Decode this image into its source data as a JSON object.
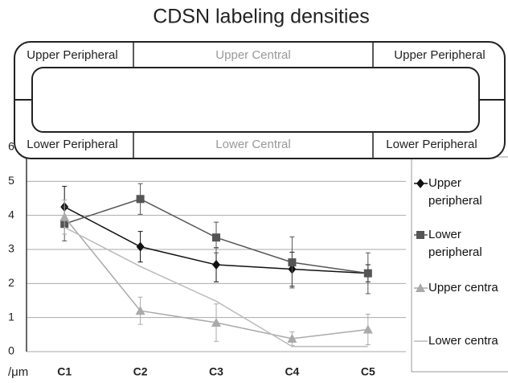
{
  "chart_data": {
    "type": "line",
    "title": "CDSN labeling densities",
    "y_label": "/μm",
    "annotations": [
      "Upper Peripheral",
      "Upper Central",
      "Upper Peripheral",
      "Lower Peripheral",
      "Lower Central",
      "Lower Peripheral"
    ],
    "categories": [
      "C1",
      "C2",
      "C3",
      "C4",
      "C5"
    ],
    "ylim": [
      0,
      6
    ],
    "yticks": [
      0,
      1,
      2,
      3,
      4,
      5,
      6
    ],
    "grid": true,
    "legend": "right",
    "series": [
      {
        "name": "Upper peripheral",
        "color": "#111111",
        "marker": "diamond",
        "values": [
          4.25,
          3.08,
          2.55,
          2.42,
          2.3
        ],
        "errors": [
          0.6,
          0.45,
          0.5,
          0.5,
          0.25
        ]
      },
      {
        "name": "Lower peripheral",
        "color": "#555555",
        "marker": "square",
        "values": [
          3.75,
          4.48,
          3.35,
          2.62,
          2.3
        ],
        "errors": [
          0.5,
          0.45,
          0.45,
          0.75,
          0.6
        ]
      },
      {
        "name": "Upper centra",
        "color": "#aaaaaa",
        "marker": "triangle",
        "values": [
          3.95,
          1.2,
          0.85,
          0.38,
          0.65
        ],
        "errors": [
          0.5,
          0.4,
          0.55,
          0.2,
          0.45
        ]
      },
      {
        "name": "Lower centra",
        "color": "#bbbbbb",
        "marker": "none",
        "values": [
          3.65,
          2.5,
          1.48,
          0.15,
          0.15
        ]
      }
    ]
  }
}
